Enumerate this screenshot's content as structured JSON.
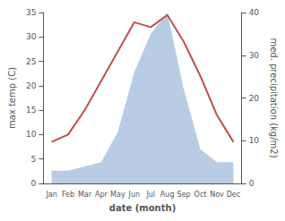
{
  "chart_data": {
    "type": "line",
    "xlabel": "date (month)",
    "ylabel": "max temp (C)",
    "y2label": "med. precipitation (kg/m2)",
    "categories": [
      "Jan",
      "Feb",
      "Mar",
      "Apr",
      "May",
      "Jun",
      "Jul",
      "Aug",
      "Sep",
      "Oct",
      "Nov",
      "Dec"
    ],
    "series": [
      {
        "type": "area",
        "axis": "y2",
        "color": "#b8cce4",
        "values": [
          3.0,
          3.0,
          4.0,
          5.0,
          12.0,
          26.0,
          35.0,
          40.0,
          22.0,
          8.0,
          5.0,
          5.0
        ]
      },
      {
        "type": "line",
        "color": "#c0504d",
        "values": [
          8.5,
          10.0,
          15.0,
          21.0,
          27.0,
          33.0,
          32.0,
          34.5,
          29.0,
          22.0,
          14.0,
          8.5
        ]
      }
    ],
    "ylim": [
      0,
      35
    ],
    "yticks": [
      0,
      5,
      10,
      15,
      20,
      25,
      30,
      35
    ],
    "y2lim": [
      0,
      40
    ],
    "y2ticks": [
      0,
      10,
      20,
      30,
      40
    ],
    "grid": false
  }
}
